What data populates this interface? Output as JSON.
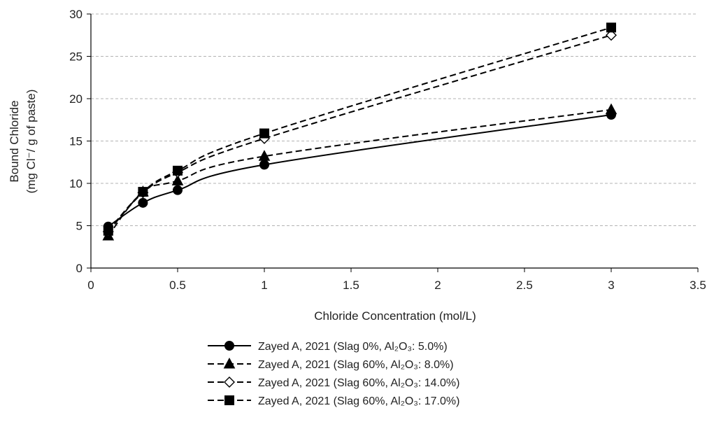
{
  "chart_data": {
    "type": "line",
    "title": "",
    "xlabel": "Chloride Concentration (mol/L)",
    "ylabel": [
      "Bound Chloride",
      "(mg Cl⁻/ g of paste)"
    ],
    "xlim": [
      0,
      3.5
    ],
    "ylim": [
      0,
      30
    ],
    "xticks": [
      "0",
      "0.5",
      "1",
      "1.5",
      "2",
      "2.5",
      "3",
      "3.5"
    ],
    "yticks": [
      "0",
      "5",
      "10",
      "15",
      "20",
      "25",
      "30"
    ],
    "grid": "horizontal dashed",
    "legend_position": "bottom",
    "x": [
      0.1,
      0.3,
      0.5,
      1,
      3
    ],
    "series": [
      {
        "name": "Zayed A, 2021 (Slag 0%,  Al₂O₃: 5.0%)",
        "values": [
          4.9,
          7.7,
          9.2,
          12.2,
          18.1
        ],
        "marker": "circle",
        "line": "solid",
        "color": "#000000"
      },
      {
        "name": "Zayed A, 2021 (Slag 60%,  Al₂O₃: 8.0%)",
        "values": [
          3.8,
          9.0,
          10.3,
          13.2,
          18.7
        ],
        "marker": "triangle",
        "line": "dashed",
        "color": "#000000"
      },
      {
        "name": "Zayed A, 2021 (Slag 60%,  Al₂O₃: 14.0%)",
        "values": [
          4.3,
          8.9,
          11.3,
          15.3,
          27.5
        ],
        "marker": "diamond-open",
        "line": "dashed",
        "color": "#000000"
      },
      {
        "name": "Zayed A, 2021 (Slag 60%,  Al₂O₃: 17.0%)",
        "values": [
          4.4,
          9.0,
          11.5,
          15.9,
          28.4
        ],
        "marker": "square",
        "line": "dashed",
        "color": "#000000"
      }
    ]
  }
}
